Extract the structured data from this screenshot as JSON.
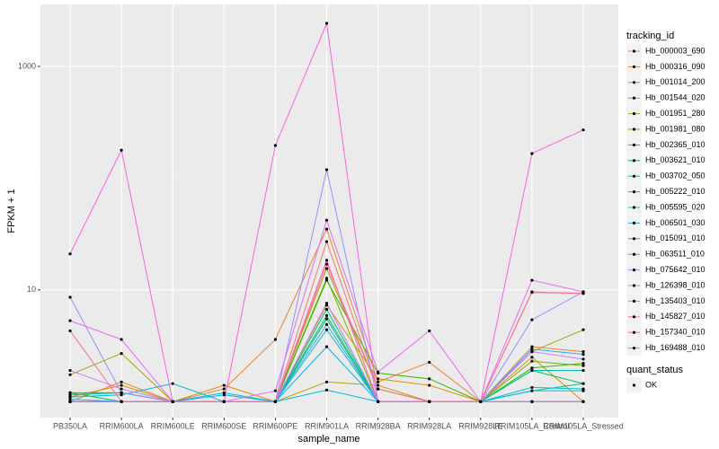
{
  "chart_data": {
    "type": "line",
    "x_label": "sample_name",
    "y_label": "FPKM + 1",
    "legend_title": "tracking_id",
    "legend2": {
      "title": "quant_status",
      "entries": [
        "OK"
      ]
    },
    "log_y": true,
    "grid": true,
    "point_color": "#000000",
    "ylim": [
      0.72,
      3580
    ],
    "yticks": [
      10,
      1000
    ],
    "y_minor_ticks": [
      100
    ],
    "categories": [
      "PB350LA",
      "RRIM600LA",
      "RRIM600LE",
      "RRIM600SE",
      "RRIM600PE",
      "RRIM901LA",
      "RRIM928BA",
      "RRIM928LA",
      "RRIM928LE",
      "RRIM105LA_Control",
      "RRIM105LA_Stressed"
    ],
    "series": [
      {
        "name": "Hb_000003_690",
        "color": "#F8766D",
        "values": [
          1,
          1,
          1,
          1,
          1,
          27,
          1.3,
          1,
          1,
          9.6,
          9.3
        ]
      },
      {
        "name": "Hb_000316_090",
        "color": "#EA8331",
        "values": [
          1,
          1.5,
          1,
          1.3,
          3.6,
          35,
          1.5,
          2.25,
          1,
          3.1,
          2.8
        ]
      },
      {
        "name": "Hb_001014_200",
        "color": "#D89000",
        "values": [
          1.1,
          1.4,
          1,
          1.4,
          1,
          7.3,
          1.6,
          1.4,
          1,
          2.5,
          1
        ]
      },
      {
        "name": "Hb_001544_020",
        "color": "#C09B00",
        "values": [
          1,
          1,
          1,
          1,
          1,
          1.5,
          1.4,
          1,
          1,
          1,
          1
        ]
      },
      {
        "name": "Hb_001951_280",
        "color": "#A3A500",
        "values": [
          1.74,
          2.7,
          1,
          1,
          1,
          15.5,
          1.3,
          1,
          1,
          2.8,
          4.4
        ]
      },
      {
        "name": "Hb_001981_080",
        "color": "#7CAE00",
        "values": [
          1,
          1,
          1,
          1,
          1,
          12.7,
          1,
          1,
          1,
          2.3,
          2.1
        ]
      },
      {
        "name": "Hb_002365_010",
        "color": "#39B600",
        "values": [
          1.2,
          1.2,
          1,
          1,
          1,
          12.2,
          1.8,
          1.6,
          1,
          2.0,
          2.2
        ]
      },
      {
        "name": "Hb_003621_010",
        "color": "#00BB4E",
        "values": [
          1.2,
          1,
          1,
          1,
          1,
          5.5,
          1,
          1,
          1,
          1.9,
          1.45
        ]
      },
      {
        "name": "Hb_003702_050",
        "color": "#00BF7D",
        "values": [
          1,
          1,
          1,
          1,
          1,
          6.7,
          1,
          1,
          1,
          1.25,
          1.45
        ]
      },
      {
        "name": "Hb_005222_010",
        "color": "#00C1A3",
        "values": [
          1.15,
          1.2,
          1,
          1,
          1,
          5.9,
          1,
          1,
          1,
          1.9,
          1.9
        ]
      },
      {
        "name": "Hb_005595_020",
        "color": "#00BFC4",
        "values": [
          1,
          1,
          1,
          1.15,
          1,
          4.4,
          1,
          1,
          1,
          1.34,
          1.3
        ]
      },
      {
        "name": "Hb_006501_030",
        "color": "#00BAE0",
        "values": [
          1.1,
          1.15,
          1.45,
          1,
          1,
          1.27,
          1,
          1,
          1,
          1.25,
          1.25
        ]
      },
      {
        "name": "Hb_015091_010",
        "color": "#00B0F6",
        "values": [
          1,
          1,
          1,
          1.2,
          1,
          3.1,
          1,
          1,
          1,
          1,
          1
        ]
      },
      {
        "name": "Hb_063511_010",
        "color": "#35A2FF",
        "values": [
          1.05,
          1,
          1,
          1,
          1,
          4.9,
          1,
          1,
          1,
          2.95,
          2.65
        ]
      },
      {
        "name": "Hb_075642_010",
        "color": "#9590FF",
        "values": [
          8.6,
          1.2,
          1,
          1,
          1,
          119,
          1,
          1,
          1,
          5.4,
          9.6
        ]
      },
      {
        "name": "Hb_126398_010",
        "color": "#C77CFF",
        "values": [
          1.9,
          1.3,
          1,
          1,
          1,
          7.6,
          1,
          1,
          1,
          2.8,
          2.4
        ]
      },
      {
        "name": "Hb_135403_010",
        "color": "#E76BF3",
        "values": [
          5.3,
          3.6,
          1,
          1,
          1.25,
          42,
          1.84,
          4.3,
          1,
          12.2,
          9.6
        ]
      },
      {
        "name": "Hb_145827_010",
        "color": "#FA62DB",
        "values": [
          21,
          178,
          1,
          1,
          196,
          2430,
          1,
          1,
          1,
          166,
          270
        ]
      },
      {
        "name": "Hb_157340_010",
        "color": "#FF62BC",
        "values": [
          1,
          1,
          1,
          1,
          1,
          18.4,
          1,
          1,
          1,
          1,
          1
        ]
      },
      {
        "name": "Hb_169488_010",
        "color": "#FF6C91",
        "values": [
          4.3,
          1,
          1,
          1,
          1,
          17,
          1.3,
          1,
          1,
          9.5,
          9.3
        ]
      }
    ]
  }
}
